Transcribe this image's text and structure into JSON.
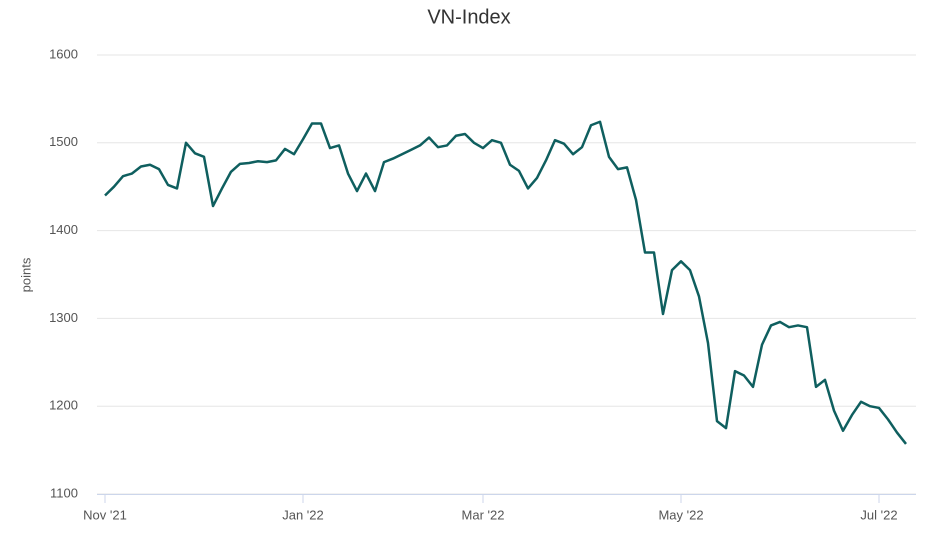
{
  "chart_data": {
    "type": "line",
    "title": "VN-Index",
    "y_label": "points",
    "categories": [
      "Nov '21",
      null,
      null,
      null,
      null,
      null,
      null,
      null,
      null,
      null,
      null,
      null,
      null,
      null,
      null,
      null,
      null,
      null,
      null,
      null,
      null,
      null,
      "Jan '22",
      null,
      null,
      null,
      null,
      null,
      null,
      null,
      null,
      null,
      null,
      null,
      null,
      null,
      null,
      null,
      null,
      null,
      null,
      null,
      "Mar '22",
      null,
      null,
      null,
      null,
      null,
      null,
      null,
      null,
      null,
      null,
      null,
      null,
      null,
      null,
      null,
      null,
      null,
      null,
      null,
      null,
      null,
      "May '22",
      null,
      null,
      null,
      null,
      null,
      null,
      null,
      null,
      null,
      null,
      null,
      null,
      null,
      null,
      null,
      null,
      null,
      null,
      null,
      null,
      null,
      "Jul '22",
      null,
      null,
      null
    ],
    "series": [
      {
        "name": "VN-Index",
        "color": "#0f5f5f",
        "values": [
          1440,
          1450,
          1462,
          1465,
          1473,
          1475,
          1470,
          1452,
          1448,
          1500,
          1488,
          1484,
          1428,
          1448,
          1467,
          1476,
          1477,
          1479,
          1478,
          1480,
          1493,
          1487,
          1504,
          1522,
          1522,
          1494,
          1497,
          1465,
          1445,
          1465,
          1445,
          1478,
          1482,
          1487,
          1492,
          1497,
          1506,
          1495,
          1497,
          1508,
          1510,
          1500,
          1494,
          1503,
          1500,
          1475,
          1468,
          1448,
          1460,
          1480,
          1503,
          1499,
          1487,
          1495,
          1520,
          1524,
          1484,
          1470,
          1472,
          1435,
          1375,
          1375,
          1305,
          1355,
          1365,
          1355,
          1325,
          1272,
          1183,
          1175,
          1240,
          1235,
          1222,
          1270,
          1292,
          1296,
          1290,
          1292,
          1290,
          1222,
          1230,
          1195,
          1172,
          1190,
          1205,
          1200,
          1198,
          1185,
          1170,
          1157
        ]
      }
    ],
    "ylim": [
      1100,
      1600
    ],
    "yticks": [
      1100,
      1200,
      1300,
      1400,
      1500,
      1600
    ],
    "grid": true
  }
}
